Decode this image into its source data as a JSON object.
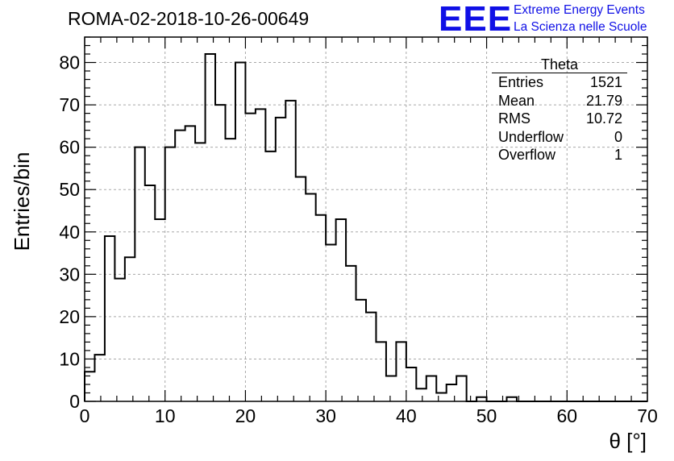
{
  "header": {
    "run_id": "ROMA-02-2018-10-26-00649",
    "logo_text": "EEE",
    "logo_line1": "Extreme Energy Events",
    "logo_line2": "La Scienza nelle Scuole",
    "logo_color": "#1010e6"
  },
  "stats_box": {
    "title": "Theta",
    "rows": [
      {
        "label": "Entries",
        "value": "1521"
      },
      {
        "label": "Mean",
        "value": "21.79"
      },
      {
        "label": "RMS",
        "value": "10.72"
      },
      {
        "label": "Underflow",
        "value": "0"
      },
      {
        "label": "Overflow",
        "value": "1"
      }
    ]
  },
  "chart_data": {
    "type": "bar",
    "style": "step-histogram",
    "title": "ROMA-02-2018-10-26-00649",
    "xlabel": "θ [°]",
    "ylabel": "Entries/bin",
    "xlim": [
      0,
      70
    ],
    "ylim": [
      0,
      86
    ],
    "xticks": [
      0,
      10,
      20,
      30,
      40,
      50,
      60,
      70
    ],
    "yticks": [
      0,
      10,
      20,
      30,
      40,
      50,
      60,
      70,
      80
    ],
    "grid": true,
    "bin_width": 1.25,
    "bin_edges_start": 0,
    "values": [
      7,
      11,
      39,
      29,
      34,
      60,
      51,
      43,
      60,
      64,
      65,
      61,
      82,
      70,
      62,
      80,
      68,
      69,
      59,
      67,
      71,
      53,
      49,
      44,
      37,
      43,
      32,
      24,
      21,
      14,
      6,
      14,
      8,
      3,
      6,
      2,
      4,
      6,
      0,
      1,
      0,
      0,
      1,
      0,
      0,
      0,
      0,
      0,
      0,
      0,
      0,
      0,
      0,
      0,
      0,
      0
    ],
    "line_color": "#000000"
  }
}
